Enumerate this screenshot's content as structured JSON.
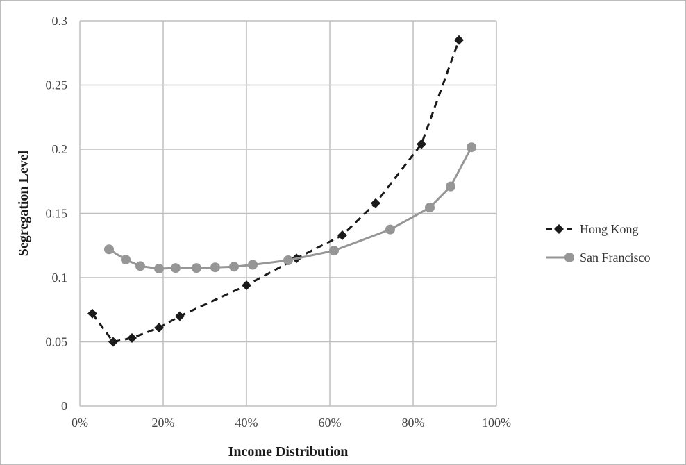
{
  "chart_data": {
    "type": "line",
    "xlabel": "Income Distribution",
    "ylabel": "Segregation Level",
    "xlim": [
      0,
      1
    ],
    "ylim": [
      0,
      0.3
    ],
    "x_ticks": [
      "0%",
      "20%",
      "40%",
      "60%",
      "80%",
      "100%"
    ],
    "y_ticks": [
      "0",
      "0.05",
      "0.1",
      "0.15",
      "0.2",
      "0.25",
      "0.3"
    ],
    "grid": true,
    "legend_position": "right",
    "series": [
      {
        "name": "Hong Kong",
        "style": "dashed",
        "marker": "diamond",
        "color": "#1a1a1a",
        "points": [
          [
            0.03,
            0.072
          ],
          [
            0.08,
            0.05
          ],
          [
            0.125,
            0.053
          ],
          [
            0.19,
            0.061
          ],
          [
            0.24,
            0.07
          ],
          [
            0.4,
            0.094
          ],
          [
            0.52,
            0.115
          ],
          [
            0.63,
            0.133
          ],
          [
            0.71,
            0.158
          ],
          [
            0.82,
            0.204
          ],
          [
            0.91,
            0.285
          ]
        ]
      },
      {
        "name": "San Francisco",
        "style": "solid",
        "marker": "circle",
        "color": "#969696",
        "points": [
          [
            0.07,
            0.122
          ],
          [
            0.11,
            0.114
          ],
          [
            0.145,
            0.109
          ],
          [
            0.19,
            0.107
          ],
          [
            0.23,
            0.1075
          ],
          [
            0.28,
            0.1075
          ],
          [
            0.325,
            0.108
          ],
          [
            0.37,
            0.1085
          ],
          [
            0.415,
            0.11
          ],
          [
            0.5,
            0.1135
          ],
          [
            0.61,
            0.121
          ],
          [
            0.745,
            0.1375
          ],
          [
            0.84,
            0.1545
          ],
          [
            0.89,
            0.171
          ],
          [
            0.94,
            0.2015
          ]
        ]
      }
    ]
  }
}
